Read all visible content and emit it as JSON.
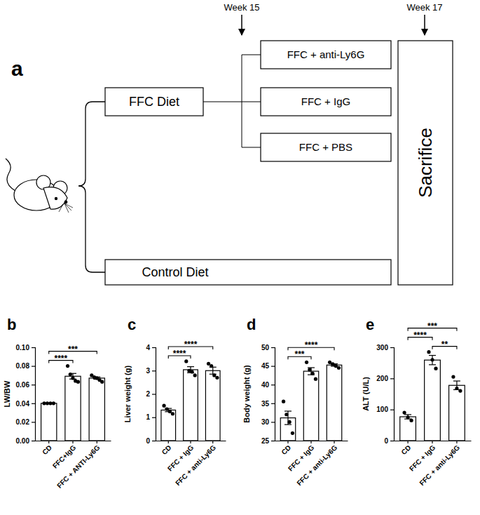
{
  "diagram": {
    "label": "a",
    "timepoints": [
      "Week 15",
      "Week 17"
    ],
    "diet": "FFC Diet",
    "groups": [
      "FFC + anti-Ly6G",
      "FFC + IgG",
      "FFC + PBS"
    ],
    "control": "Control Diet",
    "endpoint": "Sacrifice"
  },
  "chart_data": [
    {
      "type": "bar",
      "title": "b",
      "y_label": "LW/BW",
      "categories": [
        "CD",
        "FFC+IgG",
        "FFC + ANTI-Ly6G"
      ],
      "values": [
        0.04,
        0.069,
        0.067
      ],
      "errors": [
        0.0003,
        0.003,
        0.0012
      ],
      "points": [
        [
          0.04,
          0.04,
          0.04,
          0.04
        ],
        [
          0.08,
          0.071,
          0.067,
          0.064,
          0.063
        ],
        [
          0.07,
          0.068,
          0.067,
          0.065,
          0.063
        ]
      ],
      "ylim": [
        0,
        0.1
      ],
      "yticks": [
        {
          "value": 0,
          "label": "0.00"
        },
        {
          "value": 0.02,
          "label": "0.02"
        },
        {
          "value": 0.04,
          "label": "0.04"
        },
        {
          "value": 0.06,
          "label": "0.06"
        },
        {
          "value": 0.08,
          "label": "0.08"
        },
        {
          "value": 0.1,
          "label": "0.10"
        }
      ],
      "annotations": [
        {
          "text": "****",
          "from": 0,
          "to": 1
        },
        {
          "text": "***",
          "from": 0,
          "to": 2
        }
      ]
    },
    {
      "type": "bar",
      "title": "c",
      "y_label": "Liver weight (g)",
      "categories": [
        "CD",
        "FFC + IgG",
        "FFC + anti-Ly6G"
      ],
      "values": [
        1.31,
        3.04,
        3.0
      ],
      "errors": [
        0.07,
        0.13,
        0.15
      ],
      "points": [
        [
          1.5,
          1.35,
          1.25,
          1.15
        ],
        [
          3.4,
          3.0,
          2.95,
          2.8
        ],
        [
          3.3,
          3.2,
          2.8,
          2.7
        ]
      ],
      "ylim": [
        0,
        4
      ],
      "yticks": [
        0,
        1,
        2,
        3,
        4
      ],
      "annotations": [
        {
          "text": "****",
          "from": 0,
          "to": 1
        },
        {
          "text": "****",
          "from": 0,
          "to": 2
        }
      ]
    },
    {
      "type": "bar",
      "title": "d",
      "y_label": "Body weight (g)",
      "categories": [
        "CD",
        "FFC + IgG",
        "FFC + anti-Ly6G"
      ],
      "values": [
        31.1,
        43.6,
        45.25
      ],
      "errors": [
        1.8,
        0.95,
        0.32
      ],
      "points": [
        [
          35.5,
          32,
          30,
          27
        ],
        [
          46,
          44,
          43,
          41.5
        ],
        [
          46,
          45.5,
          45,
          44.5
        ]
      ],
      "ylim": [
        25,
        50
      ],
      "yticks": [
        25,
        30,
        35,
        40,
        45,
        50
      ],
      "annotations": [
        {
          "text": "***",
          "from": 0,
          "to": 1
        },
        {
          "text": "****",
          "from": 0,
          "to": 2
        }
      ]
    },
    {
      "type": "bar",
      "title": "e",
      "y_label": "ALT (U/L)",
      "categories": [
        "CD",
        "FFC + IgG",
        "FFC + anti-Ly6G"
      ],
      "values": [
        76.7,
        259,
        177.7
      ],
      "errors": [
        7,
        15,
        14
      ],
      "points": [
        [
          90,
          75,
          65
        ],
        [
          285,
          260,
          232
        ],
        [
          205,
          168,
          160
        ]
      ],
      "ylim": [
        0,
        300
      ],
      "yticks": [
        0,
        100,
        200,
        300
      ],
      "annotations": [
        {
          "text": "**",
          "from": 1,
          "to": 2
        },
        {
          "text": "****",
          "from": 0,
          "to": 1
        },
        {
          "text": "***",
          "from": 0,
          "to": 2
        }
      ]
    }
  ]
}
